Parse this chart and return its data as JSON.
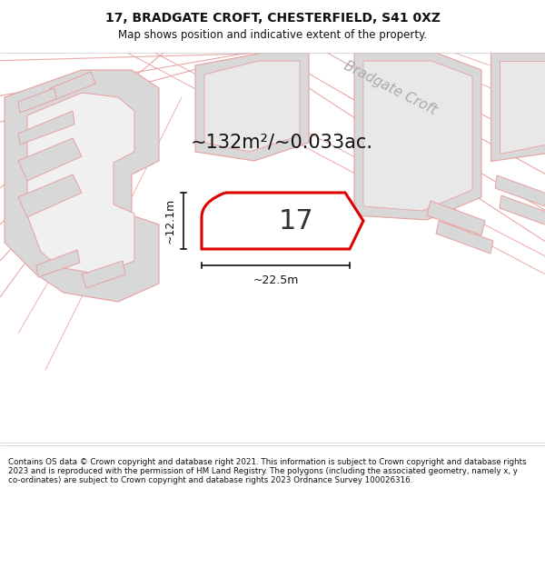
{
  "title_line1": "17, BRADGATE CROFT, CHESTERFIELD, S41 0XZ",
  "title_line2": "Map shows position and indicative extent of the property.",
  "area_text": "~132m²/~0.033ac.",
  "dim_width": "~22.5m",
  "dim_height": "~12.1m",
  "property_number": "17",
  "street_name": "Bradgate Croft",
  "footer_text": "Contains OS data © Crown copyright and database right 2021. This information is subject to Crown copyright and database rights 2023 and is reproduced with the permission of HM Land Registry. The polygons (including the associated geometry, namely x, y co-ordinates) are subject to Crown copyright and database rights 2023 Ordnance Survey 100026316.",
  "map_bg": "#f0f0f0",
  "building_fill": "#d8d8d8",
  "building_edge": "#e8a0a0",
  "property_fill": "#ffffff",
  "property_edge": "#dd0000",
  "dim_color": "#111111",
  "street_color": "#c0c0c0",
  "street_text_color": "#aaaaaa",
  "title_fontsize": 10,
  "subtitle_fontsize": 8.5,
  "area_fontsize": 15,
  "num_fontsize": 22,
  "dim_fontsize": 9,
  "footer_fontsize": 6.3
}
